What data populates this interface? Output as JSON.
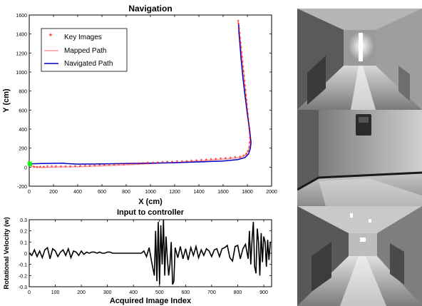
{
  "chart_data": [
    {
      "type": "line",
      "title": "Navigation",
      "xlabel": "X (cm)",
      "ylabel": "Y (cm)",
      "xlim": [
        0,
        2000
      ],
      "ylim": [
        -200,
        1600
      ],
      "x_ticks": [
        0,
        200,
        400,
        600,
        800,
        1000,
        1200,
        1400,
        1600,
        1800,
        2000
      ],
      "y_ticks": [
        -200,
        0,
        200,
        400,
        600,
        800,
        1000,
        1200,
        1400,
        1600
      ],
      "legend": {
        "placement": "top-left",
        "entries": [
          "Key Images",
          "Mapped Path",
          "Navigated Path"
        ]
      },
      "series": [
        {
          "name": "Key Images",
          "kind": "markers",
          "color": "#ff0000",
          "points": [
            [
              15,
              10
            ],
            [
              40,
              -5
            ],
            [
              65,
              -10
            ],
            [
              90,
              -5
            ],
            [
              120,
              -5
            ],
            [
              150,
              -2
            ],
            [
              185,
              0
            ],
            [
              220,
              0
            ],
            [
              260,
              0
            ],
            [
              300,
              0
            ],
            [
              340,
              0
            ],
            [
              380,
              2
            ],
            [
              420,
              4
            ],
            [
              460,
              6
            ],
            [
              500,
              8
            ],
            [
              540,
              10
            ],
            [
              580,
              12
            ],
            [
              620,
              14
            ],
            [
              660,
              16
            ],
            [
              700,
              18
            ],
            [
              740,
              20
            ],
            [
              780,
              22
            ],
            [
              820,
              25
            ],
            [
              860,
              28
            ],
            [
              900,
              30
            ],
            [
              940,
              32
            ],
            [
              980,
              35
            ],
            [
              1020,
              38
            ],
            [
              1060,
              40
            ],
            [
              1100,
              43
            ],
            [
              1140,
              46
            ],
            [
              1180,
              48
            ],
            [
              1220,
              50
            ],
            [
              1260,
              53
            ],
            [
              1300,
              56
            ],
            [
              1340,
              60
            ],
            [
              1380,
              63
            ],
            [
              1420,
              66
            ],
            [
              1460,
              70
            ],
            [
              1500,
              74
            ],
            [
              1540,
              78
            ],
            [
              1580,
              82
            ],
            [
              1620,
              86
            ],
            [
              1660,
              90
            ],
            [
              1700,
              95
            ],
            [
              1740,
              100
            ],
            [
              1770,
              110
            ],
            [
              1790,
              130
            ],
            [
              1805,
              160
            ],
            [
              1815,
              200
            ],
            [
              1820,
              250
            ],
            [
              1822,
              300
            ],
            [
              1820,
              350
            ],
            [
              1816,
              400
            ],
            [
              1812,
              450
            ],
            [
              1808,
              500
            ],
            [
              1804,
              550
            ],
            [
              1800,
              600
            ],
            [
              1796,
              650
            ],
            [
              1792,
              700
            ],
            [
              1788,
              750
            ],
            [
              1784,
              800
            ],
            [
              1780,
              850
            ],
            [
              1776,
              900
            ],
            [
              1772,
              950
            ],
            [
              1768,
              1000
            ],
            [
              1764,
              1050
            ],
            [
              1760,
              1100
            ],
            [
              1756,
              1150
            ],
            [
              1752,
              1200
            ],
            [
              1748,
              1250
            ],
            [
              1744,
              1300
            ],
            [
              1740,
              1350
            ],
            [
              1736,
              1400
            ],
            [
              1732,
              1450
            ],
            [
              1728,
              1500
            ],
            [
              1724,
              1530
            ]
          ]
        },
        {
          "name": "Mapped Path",
          "kind": "line",
          "color": "#ff9999",
          "points": [
            [
              15,
              10
            ],
            [
              100,
              -5
            ],
            [
              200,
              0
            ],
            [
              400,
              4
            ],
            [
              600,
              14
            ],
            [
              800,
              24
            ],
            [
              1000,
              36
            ],
            [
              1200,
              49
            ],
            [
              1400,
              64
            ],
            [
              1600,
              84
            ],
            [
              1740,
              100
            ],
            [
              1790,
              130
            ],
            [
              1815,
              200
            ],
            [
              1822,
              300
            ],
            [
              1812,
              450
            ],
            [
              1800,
              600
            ],
            [
              1784,
              800
            ],
            [
              1768,
              1000
            ],
            [
              1752,
              1200
            ],
            [
              1736,
              1400
            ],
            [
              1724,
              1530
            ]
          ]
        },
        {
          "name": "Navigated Path",
          "kind": "line",
          "color": "#0000cc",
          "points": [
            [
              0,
              35
            ],
            [
              100,
              38
            ],
            [
              200,
              40
            ],
            [
              280,
              42
            ],
            [
              300,
              38
            ],
            [
              400,
              32
            ],
            [
              600,
              34
            ],
            [
              800,
              38
            ],
            [
              1000,
              42
            ],
            [
              1200,
              47
            ],
            [
              1400,
              55
            ],
            [
              1600,
              65
            ],
            [
              1720,
              80
            ],
            [
              1780,
              100
            ],
            [
              1810,
              140
            ],
            [
              1825,
              200
            ],
            [
              1830,
              260
            ],
            [
              1820,
              380
            ],
            [
              1800,
              560
            ],
            [
              1780,
              760
            ],
            [
              1762,
              960
            ],
            [
              1748,
              1140
            ],
            [
              1738,
              1300
            ],
            [
              1730,
              1420
            ],
            [
              1728,
              1500
            ]
          ]
        },
        {
          "name": "start",
          "kind": "marker",
          "color": "#00ff00",
          "points": [
            [
              5,
              35
            ]
          ]
        }
      ]
    },
    {
      "type": "line",
      "title": "Input to controller",
      "xlabel": "Acquired Image Index",
      "ylabel": "Rotational Velocity (w)",
      "xlim": [
        0,
        930
      ],
      "ylim": [
        -0.3,
        0.3
      ],
      "x_ticks": [
        0,
        100,
        200,
        300,
        400,
        500,
        600,
        700,
        800,
        900
      ],
      "y_ticks": [
        -0.3,
        -0.2,
        -0.1,
        0,
        0.1,
        0.2,
        0.3
      ],
      "series": [
        {
          "color": "#000000",
          "x": [
            0,
            10,
            20,
            30,
            40,
            50,
            60,
            70,
            80,
            90,
            100,
            110,
            120,
            130,
            140,
            150,
            160,
            170,
            180,
            190,
            200,
            210,
            220,
            230,
            240,
            250,
            260,
            270,
            280,
            290,
            300,
            310,
            320,
            330,
            340,
            350,
            360,
            370,
            380,
            390,
            400,
            410,
            420,
            430,
            440,
            450,
            460,
            470,
            480,
            485,
            490,
            495,
            500,
            505,
            510,
            515,
            520,
            525,
            530,
            535,
            540,
            545,
            550,
            555,
            560,
            570,
            580,
            590,
            600,
            610,
            620,
            630,
            640,
            650,
            660,
            670,
            680,
            690,
            700,
            710,
            720,
            730,
            740,
            750,
            760,
            770,
            780,
            790,
            800,
            810,
            820,
            830,
            840,
            845,
            850,
            855,
            860,
            865,
            870,
            875,
            880,
            885,
            890,
            895,
            900,
            905,
            910,
            915,
            920,
            925
          ],
          "y": [
            0.0,
            -0.02,
            0.03,
            -0.03,
            0.02,
            -0.04,
            0.03,
            0.05,
            -0.05,
            0.04,
            0.02,
            -0.03,
            0.01,
            0.03,
            -0.02,
            0.04,
            -0.04,
            0.02,
            0.01,
            -0.02,
            0.02,
            -0.01,
            0.01,
            0.0,
            0.01,
            0.01,
            0.0,
            0.01,
            0.0,
            0.0,
            0.01,
            0.01,
            0.0,
            0.0,
            0.0,
            0.0,
            0.0,
            0.0,
            0.0,
            0.0,
            0.0,
            0.0,
            0.0,
            0.0,
            0.02,
            -0.03,
            0.05,
            -0.08,
            -0.2,
            0.2,
            -0.25,
            0.28,
            -0.28,
            0.25,
            -0.1,
            0.3,
            -0.2,
            0.15,
            -0.05,
            -0.2,
            -0.1,
            0.1,
            -0.28,
            -0.25,
            0.05,
            -0.04,
            0.06,
            -0.05,
            0.04,
            -0.06,
            0.05,
            -0.02,
            0.06,
            -0.04,
            0.03,
            -0.02,
            0.04,
            0.02,
            -0.03,
            0.03,
            0.04,
            -0.03,
            0.04,
            0.05,
            0.07,
            -0.04,
            -0.07,
            0.06,
            0.07,
            -0.05,
            0.04,
            0.08,
            -0.05,
            0.2,
            -0.1,
            0.12,
            0.28,
            -0.12,
            -0.18,
            0.22,
            0.1,
            -0.2,
            0.18,
            -0.08,
            0.15,
            0.1,
            -0.12,
            0.12,
            -0.06,
            0.1
          ]
        }
      ]
    }
  ],
  "images": [
    {
      "scene": "hallway-1"
    },
    {
      "scene": "hallway-2"
    },
    {
      "scene": "hallway-3"
    }
  ]
}
